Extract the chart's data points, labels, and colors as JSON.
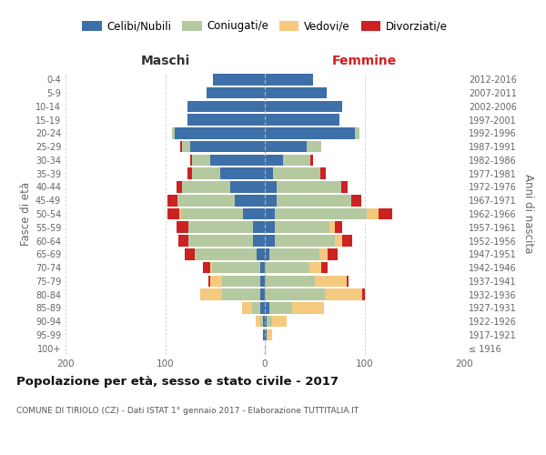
{
  "age_groups": [
    "100+",
    "95-99",
    "90-94",
    "85-89",
    "80-84",
    "75-79",
    "70-74",
    "65-69",
    "60-64",
    "55-59",
    "50-54",
    "45-49",
    "40-44",
    "35-39",
    "30-34",
    "25-29",
    "20-24",
    "15-19",
    "10-14",
    "5-9",
    "0-4"
  ],
  "birth_years": [
    "≤ 1916",
    "1917-1921",
    "1922-1926",
    "1927-1931",
    "1932-1936",
    "1937-1941",
    "1942-1946",
    "1947-1951",
    "1952-1956",
    "1957-1961",
    "1962-1966",
    "1967-1971",
    "1972-1976",
    "1977-1981",
    "1982-1986",
    "1987-1991",
    "1992-1996",
    "1997-2001",
    "2002-2006",
    "2007-2011",
    "2012-2016"
  ],
  "maschi": {
    "celibi": [
      0,
      2,
      2,
      5,
      5,
      5,
      5,
      8,
      12,
      12,
      22,
      30,
      35,
      45,
      55,
      75,
      90,
      78,
      78,
      58,
      52
    ],
    "coniugati": [
      0,
      0,
      3,
      8,
      38,
      38,
      48,
      62,
      65,
      65,
      62,
      58,
      48,
      28,
      18,
      8,
      3,
      0,
      0,
      0,
      0
    ],
    "vedovi": [
      0,
      0,
      4,
      10,
      22,
      12,
      2,
      0,
      0,
      0,
      2,
      0,
      0,
      0,
      0,
      0,
      0,
      0,
      0,
      0,
      0
    ],
    "divorziati": [
      0,
      0,
      0,
      0,
      0,
      2,
      7,
      10,
      10,
      12,
      12,
      10,
      6,
      5,
      2,
      2,
      0,
      0,
      0,
      0,
      0
    ]
  },
  "femmine": {
    "nubili": [
      0,
      2,
      2,
      5,
      0,
      0,
      0,
      5,
      10,
      10,
      10,
      12,
      12,
      8,
      18,
      42,
      90,
      75,
      78,
      62,
      48
    ],
    "coniugate": [
      0,
      0,
      5,
      22,
      60,
      50,
      45,
      50,
      60,
      55,
      92,
      75,
      65,
      48,
      28,
      15,
      5,
      0,
      0,
      0,
      0
    ],
    "vedove": [
      0,
      5,
      15,
      32,
      38,
      32,
      12,
      8,
      8,
      5,
      12,
      0,
      0,
      0,
      0,
      0,
      0,
      0,
      0,
      0,
      0
    ],
    "divorziate": [
      0,
      0,
      0,
      0,
      2,
      2,
      6,
      10,
      10,
      8,
      14,
      10,
      6,
      5,
      2,
      0,
      0,
      0,
      0,
      0,
      0
    ]
  },
  "colors": {
    "celibi": "#3d6fa8",
    "coniugati": "#b5c9a0",
    "vedovi": "#f5c97e",
    "divorziati": "#cc2222"
  },
  "legend_labels": [
    "Celibi/Nubili",
    "Coniugati/e",
    "Vedovi/e",
    "Divorziati/e"
  ],
  "title": "Popolazione per età, sesso e stato civile - 2017",
  "subtitle": "COMUNE DI TIRIOLO (CZ) - Dati ISTAT 1° gennaio 2017 - Elaborazione TUTTITALIA.IT",
  "xlabel_left": "Maschi",
  "xlabel_right": "Femmine",
  "ylabel_left": "Fasce di età",
  "ylabel_right": "Anni di nascita",
  "xlim": 200,
  "background_color": "#ffffff",
  "grid_color": "#cccccc",
  "maschi_color": "#333333",
  "femmine_color": "#cc2222"
}
